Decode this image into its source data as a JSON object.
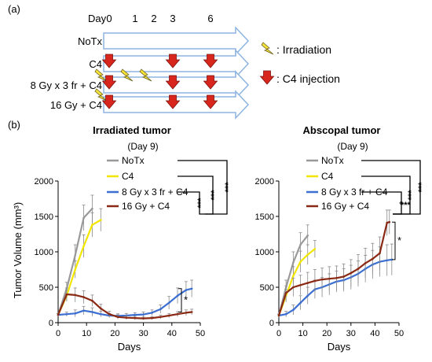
{
  "panel_a": {
    "label": "(a)",
    "day_header": "Day",
    "days": [
      {
        "label": "0",
        "day": 0
      },
      {
        "label": "1",
        "day": 1
      },
      {
        "label": "2",
        "day": 2
      },
      {
        "label": "3",
        "day": 3
      },
      {
        "label": "6",
        "day": 6
      }
    ],
    "groups": [
      {
        "label": "NoTx",
        "irradiation_days": [],
        "injection_days": []
      },
      {
        "label": "C4",
        "irradiation_days": [],
        "injection_days": [
          0,
          3,
          6
        ]
      },
      {
        "label": "8 Gy x 3 fr + C4",
        "irradiation_days": [
          0,
          1,
          2
        ],
        "injection_days": [
          0,
          3,
          6
        ]
      },
      {
        "label": "16 Gy + C4",
        "irradiation_days": [
          0
        ],
        "injection_days": [
          0,
          3,
          6
        ]
      }
    ],
    "legend": {
      "irradiation": ": Irradiation",
      "injection": ": C4 injection",
      "irradiation_icon": "lightning-bolt-icon",
      "injection_icon": "red-down-arrow-icon"
    },
    "colors": {
      "timeline": "#8db4e2",
      "arrow": "#d9261c",
      "bolt": "#f5e23a"
    }
  },
  "panel_b": {
    "label": "(b)",
    "ylabel": "Tumor Volume (mm³)",
    "legend_items": [
      "NoTx",
      "C4",
      "8 Gy x 3 fr + C4",
      "16 Gy + C4"
    ],
    "series_colors": [
      "#999999",
      "#f2e600",
      "#3c6fd1",
      "#8b2a14"
    ]
  },
  "chart_data": [
    {
      "type": "line",
      "title": "Irradiated tumor",
      "subtitle": "(Day 9)",
      "xlabel": "Days",
      "ylabel": "Tumor Volume (mm³)",
      "xlim": [
        0,
        50
      ],
      "ylim": [
        0,
        2000
      ],
      "xticks": [
        "0",
        "10",
        "20",
        "30",
        "40",
        "50"
      ],
      "yticks": [
        "0",
        "500",
        "1000",
        "1500",
        "2000"
      ],
      "grid": false,
      "legend": "top-right",
      "significance": [
        "***",
        "***",
        "***"
      ],
      "end_annotation": "*",
      "series": [
        {
          "name": "NoTx",
          "color": "#999999",
          "x": [
            0,
            3,
            6,
            9,
            12
          ],
          "y": [
            110,
            480,
            950,
            1480,
            1610
          ],
          "err": [
            20,
            90,
            150,
            180,
            190
          ]
        },
        {
          "name": "C4",
          "color": "#f2e600",
          "x": [
            0,
            3,
            6,
            9,
            12,
            15
          ],
          "y": [
            110,
            380,
            750,
            1080,
            1380,
            1450
          ],
          "err": [
            20,
            80,
            120,
            160,
            170,
            160
          ]
        },
        {
          "name": "8 Gy x 3 fr + C4",
          "color": "#3c6fd1",
          "x": [
            0,
            3,
            6,
            9,
            12,
            15,
            18,
            21,
            24,
            27,
            30,
            33,
            36,
            39,
            42,
            45,
            47
          ],
          "y": [
            110,
            120,
            130,
            170,
            150,
            120,
            100,
            95,
            100,
            110,
            115,
            140,
            190,
            280,
            380,
            460,
            480
          ],
          "err": [
            20,
            30,
            50,
            60,
            60,
            40,
            30,
            30,
            30,
            30,
            35,
            40,
            60,
            90,
            110,
            120,
            120
          ]
        },
        {
          "name": "16 Gy + C4",
          "color": "#8b2a14",
          "x": [
            0,
            3,
            6,
            9,
            12,
            15,
            18,
            21,
            24,
            27,
            30,
            33,
            36,
            39,
            42,
            45,
            47
          ],
          "y": [
            110,
            400,
            390,
            360,
            310,
            200,
            120,
            80,
            70,
            65,
            60,
            65,
            80,
            100,
            120,
            140,
            150
          ],
          "err": [
            20,
            90,
            100,
            90,
            80,
            60,
            40,
            30,
            25,
            25,
            20,
            20,
            25,
            30,
            35,
            40,
            40
          ]
        }
      ]
    },
    {
      "type": "line",
      "title": "Abscopal tumor",
      "subtitle": "(Day 9)",
      "xlabel": "Days",
      "ylabel": "",
      "xlim": [
        0,
        50
      ],
      "ylim": [
        0,
        2000
      ],
      "xticks": [
        "0",
        "10",
        "20",
        "30",
        "40",
        "50"
      ],
      "yticks": [
        "0",
        "500",
        "1000",
        "1500",
        "2000"
      ],
      "grid": false,
      "legend": "top-right",
      "significance": [
        "***",
        "***",
        "*",
        "***"
      ],
      "end_annotation": "*",
      "series": [
        {
          "name": "NoTx",
          "color": "#999999",
          "x": [
            0,
            3,
            6,
            9,
            12
          ],
          "y": [
            100,
            500,
            850,
            1100,
            1230
          ],
          "err": [
            20,
            100,
            150,
            170,
            150
          ]
        },
        {
          "name": "C4",
          "color": "#f2e600",
          "x": [
            0,
            3,
            6,
            9,
            12,
            15
          ],
          "y": [
            100,
            380,
            660,
            860,
            960,
            1040
          ],
          "err": [
            20,
            90,
            130,
            150,
            140,
            120
          ]
        },
        {
          "name": "8 Gy x 3 fr + C4",
          "color": "#3c6fd1",
          "x": [
            0,
            3,
            6,
            9,
            12,
            15,
            18,
            21,
            24,
            27,
            30,
            33,
            36,
            39,
            42,
            45,
            47
          ],
          "y": [
            100,
            120,
            180,
            280,
            380,
            470,
            500,
            540,
            580,
            600,
            640,
            690,
            760,
            820,
            860,
            880,
            890
          ],
          "err": [
            20,
            40,
            70,
            100,
            120,
            130,
            140,
            150,
            150,
            160,
            170,
            180,
            190,
            200,
            210,
            220,
            220
          ]
        },
        {
          "name": "16 Gy + C4",
          "color": "#8b2a14",
          "x": [
            0,
            3,
            6,
            9,
            12,
            15,
            18,
            21,
            24,
            27,
            30,
            33,
            36,
            39,
            42,
            45,
            46
          ],
          "y": [
            100,
            420,
            500,
            530,
            560,
            590,
            610,
            620,
            630,
            650,
            700,
            760,
            840,
            900,
            980,
            1410,
            1420
          ],
          "err": [
            20,
            100,
            130,
            140,
            150,
            160,
            160,
            170,
            170,
            180,
            190,
            200,
            210,
            220,
            230,
            180,
            170
          ]
        }
      ]
    }
  ]
}
